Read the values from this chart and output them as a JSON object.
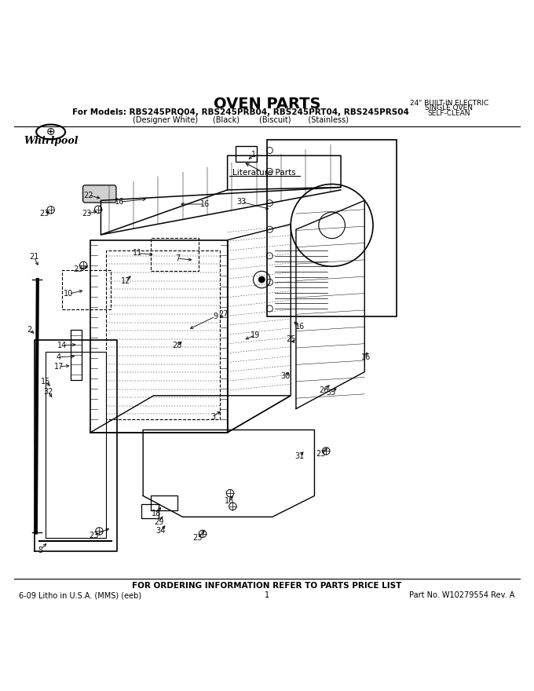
{
  "title": "OVEN PARTS",
  "subtitle_line1": "For Models: RBS245PRQ04, RBS245PRB04, RBS245PRT04, RBS245PRS04",
  "subtitle_line2": "(Designer White)      (Black)        (Biscuit)       (Stainless)",
  "top_right_line1": "24\" BUILT-IN ELECTRIC",
  "top_right_line2": "SINGLE OVEN",
  "top_right_line3": "SELF-CLEAN",
  "brand": "Whirlpool",
  "footer_center": "FOR ORDERING INFORMATION REFER TO PARTS PRICE LIST",
  "footer_left": "6-09 Litho in U.S.A. (MMS) (eeb)",
  "footer_mid": "1",
  "footer_right": "Part No. W10279554 Rev. A",
  "literature_parts_label": "Literature Parts",
  "bg_color": "#ffffff",
  "line_color": "#000000",
  "figsize": [
    6.8,
    8.8
  ],
  "dpi": 100
}
